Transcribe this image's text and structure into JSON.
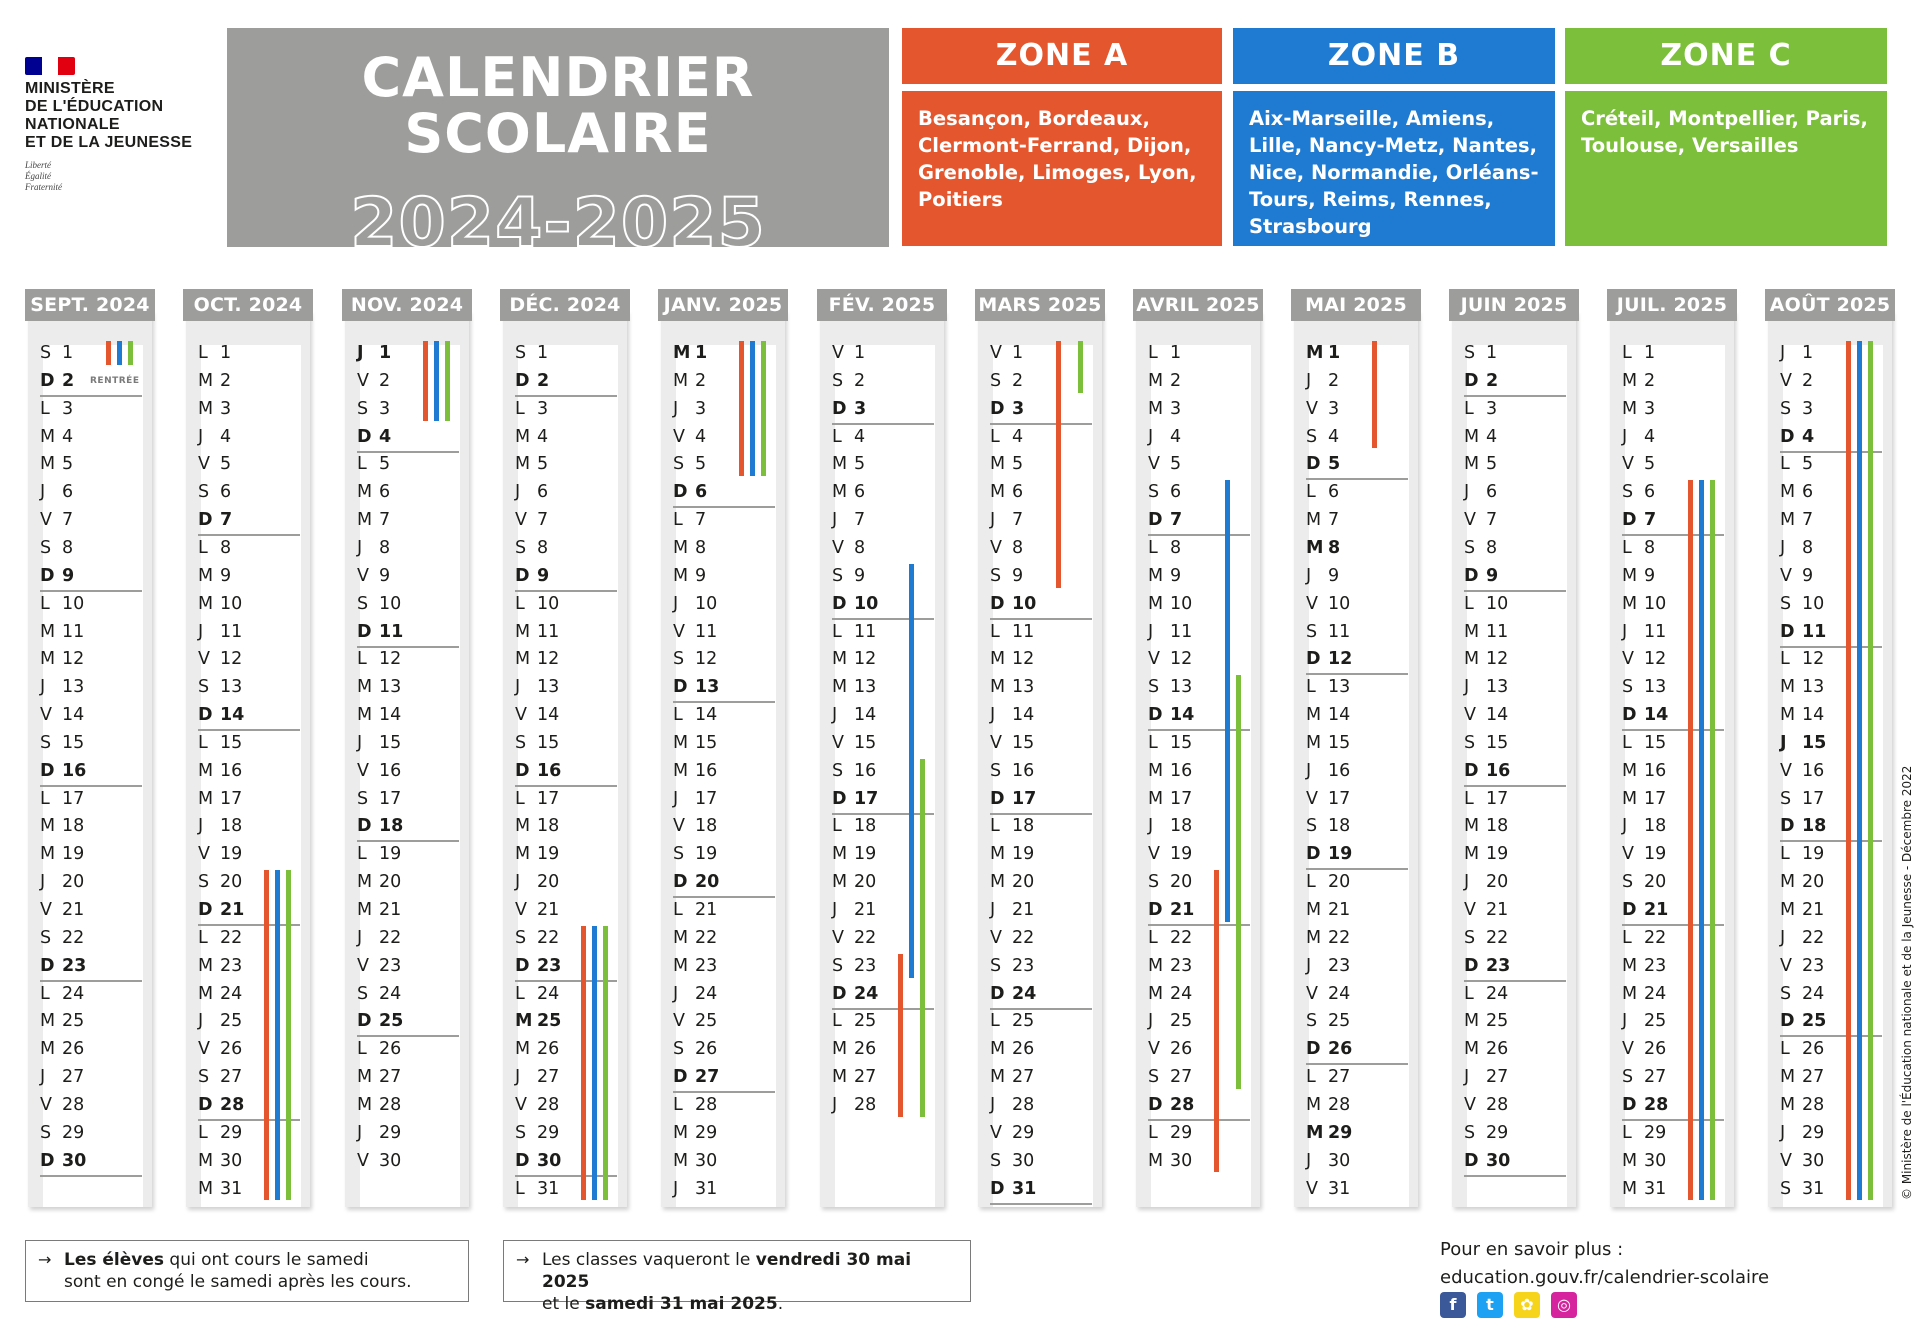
{
  "ministry": {
    "lines": [
      "MINISTÈRE",
      "DE L'ÉDUCATION",
      "NATIONALE",
      "ET DE LA JEUNESSE"
    ],
    "motto": [
      "Liberté",
      "Égalité",
      "Fraternité"
    ],
    "flag_colors": [
      "#000091",
      "#ffffff",
      "#e1000f"
    ]
  },
  "title": {
    "line1": "CALENDRIER",
    "line2": "SCOLAIRE",
    "year": "2024-2025"
  },
  "zones": [
    {
      "name": "ZONE A",
      "cities": "Besançon, Bordeaux, Clermont-Ferrand, Dijon, Grenoble, Limoges, Lyon, Poitiers",
      "color": "#e4572e"
    },
    {
      "name": "ZONE B",
      "cities": "Aix-Marseille, Amiens, Lille, Nancy-Metz, Nantes, Nice, Normandie, Orléans-Tours, Reims, Rennes, Strasbourg",
      "color": "#1f7bd1"
    },
    {
      "name": "ZONE C",
      "cities": "Créteil, Montpellier, Paris, Toulouse, Versailles",
      "color": "#7cbf3a"
    }
  ],
  "months": [
    {
      "label": "SEPT. 2024",
      "days": 30,
      "start": 6,
      "bold_extra": [],
      "note_day": 2,
      "note": "RENTRÉE"
    },
    {
      "label": "OCT. 2024",
      "days": 31,
      "start": 1,
      "bold_extra": []
    },
    {
      "label": "NOV. 2024",
      "days": 30,
      "start": 4,
      "bold_extra": [
        1,
        11
      ]
    },
    {
      "label": "DÉC. 2024",
      "days": 31,
      "start": 6,
      "bold_extra": [
        25
      ]
    },
    {
      "label": "JANV. 2025",
      "days": 31,
      "start": 2,
      "bold_extra": [
        1
      ]
    },
    {
      "label": "FÉV. 2025",
      "days": 28,
      "start": 5,
      "bold_extra": []
    },
    {
      "label": "MARS 2025",
      "days": 31,
      "start": 5,
      "bold_extra": []
    },
    {
      "label": "AVRIL 2025",
      "days": 30,
      "start": 1,
      "bold_extra": [
        21
      ]
    },
    {
      "label": "MAI 2025",
      "days": 31,
      "start": 3,
      "bold_extra": [
        1,
        8,
        29
      ]
    },
    {
      "label": "JUIN 2025",
      "days": 30,
      "start": 6,
      "bold_extra": [
        9
      ]
    },
    {
      "label": "JUIL. 2025",
      "days": 31,
      "start": 1,
      "bold_extra": [
        14
      ]
    },
    {
      "label": "AOÛT 2025",
      "days": 31,
      "start": 4,
      "bold_extra": [
        15
      ]
    }
  ],
  "weekday_letters": [
    "L",
    "M",
    "M",
    "J",
    "V",
    "S",
    "D"
  ],
  "holidays": [
    {
      "zone": 0,
      "month": 0,
      "from": 1,
      "to": 1
    },
    {
      "zone": 1,
      "month": 0,
      "from": 1,
      "to": 1
    },
    {
      "zone": 2,
      "month": 0,
      "from": 1,
      "to": 1
    },
    {
      "zone": 0,
      "month": 1,
      "from": 20,
      "to": 31
    },
    {
      "zone": 1,
      "month": 1,
      "from": 20,
      "to": 31
    },
    {
      "zone": 2,
      "month": 1,
      "from": 20,
      "to": 31
    },
    {
      "zone": 0,
      "month": 2,
      "from": 1,
      "to": 3
    },
    {
      "zone": 1,
      "month": 2,
      "from": 1,
      "to": 3
    },
    {
      "zone": 2,
      "month": 2,
      "from": 1,
      "to": 3
    },
    {
      "zone": 0,
      "month": 3,
      "from": 22,
      "to": 31
    },
    {
      "zone": 1,
      "month": 3,
      "from": 22,
      "to": 31
    },
    {
      "zone": 2,
      "month": 3,
      "from": 22,
      "to": 31
    },
    {
      "zone": 0,
      "month": 4,
      "from": 1,
      "to": 5
    },
    {
      "zone": 1,
      "month": 4,
      "from": 1,
      "to": 5
    },
    {
      "zone": 2,
      "month": 4,
      "from": 1,
      "to": 5
    },
    {
      "zone": 1,
      "month": 5,
      "from": 9,
      "to": 23
    },
    {
      "zone": 2,
      "month": 5,
      "from": 16,
      "to": 28
    },
    {
      "zone": 0,
      "month": 5,
      "from": 23,
      "to": 28
    },
    {
      "zone": 0,
      "month": 6,
      "from": 1,
      "to": 9
    },
    {
      "zone": 2,
      "month": 6,
      "from": 1,
      "to": 2
    },
    {
      "zone": 1,
      "month": 7,
      "from": 6,
      "to": 21
    },
    {
      "zone": 2,
      "month": 7,
      "from": 13,
      "to": 27
    },
    {
      "zone": 0,
      "month": 7,
      "from": 20,
      "to": 30
    },
    {
      "zone": 0,
      "month": 8,
      "from": 1,
      "to": 4
    },
    {
      "zone": 0,
      "month": 10,
      "from": 6,
      "to": 31
    },
    {
      "zone": 1,
      "month": 10,
      "from": 6,
      "to": 31
    },
    {
      "zone": 2,
      "month": 10,
      "from": 6,
      "to": 31
    },
    {
      "zone": 0,
      "month": 11,
      "from": 1,
      "to": 31
    },
    {
      "zone": 1,
      "month": 11,
      "from": 1,
      "to": 31
    },
    {
      "zone": 2,
      "month": 11,
      "from": 1,
      "to": 31
    }
  ],
  "footer": {
    "note1_bold": "Les élèves",
    "note1_rest": " qui ont cours le samedi",
    "note1_line2": "sont en congé le samedi après les cours.",
    "note2_a": "Les classes vaqueront le ",
    "note2_b": "vendredi 30 mai 2025",
    "note2_c": "et le ",
    "note2_d": "samedi 31 mai 2025",
    "note2_e": ".",
    "arrow": "→",
    "info_title": "Pour en savoir plus :",
    "info_url": "education.gouv.fr/calendrier-scolaire",
    "social": [
      {
        "name": "facebook-icon",
        "glyph": "f",
        "color": "#3b5998"
      },
      {
        "name": "twitter-icon",
        "glyph": "t",
        "color": "#1da1f2"
      },
      {
        "name": "snapchat-icon",
        "glyph": "✿",
        "color": "#f7d41c"
      },
      {
        "name": "instagram-icon",
        "glyph": "◎",
        "color": "#d6249f"
      }
    ],
    "copyright": "© Ministère de l'Éducation nationale et de la Jeunesse - Décembre 2022"
  }
}
